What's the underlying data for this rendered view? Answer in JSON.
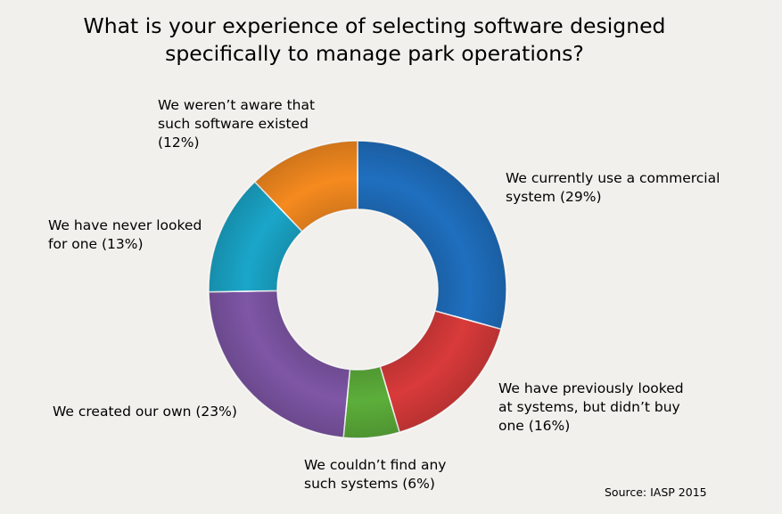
{
  "chart_data": {
    "type": "pie",
    "variant": "donut",
    "title_lines": [
      "What is your experience of selecting software designed",
      "specifically to manage park operations?"
    ],
    "slices": [
      {
        "label_lines": [
          "We currently use a commercial",
          "system (29%)"
        ],
        "value": 29,
        "color": "#1f6fbf"
      },
      {
        "label_lines": [
          "We have previously looked",
          "at systems, but didn’t buy",
          "one (16%)"
        ],
        "value": 16,
        "color": "#d93a3a"
      },
      {
        "label_lines": [
          "We couldn’t find any",
          "such systems (6%)"
        ],
        "value": 6,
        "color": "#5cae3a"
      },
      {
        "label_lines": [
          "We created our own (23%)"
        ],
        "value": 23,
        "color": "#7e56a6"
      },
      {
        "label_lines": [
          "We have never looked",
          "for one (13%)"
        ],
        "value": 13,
        "color": "#1aa6c9"
      },
      {
        "label_lines": [
          "We weren’t aware that",
          "such software existed",
          "(12%)"
        ],
        "value": 12,
        "color": "#f58a1f"
      }
    ],
    "source": "Source: IASP 2015"
  }
}
